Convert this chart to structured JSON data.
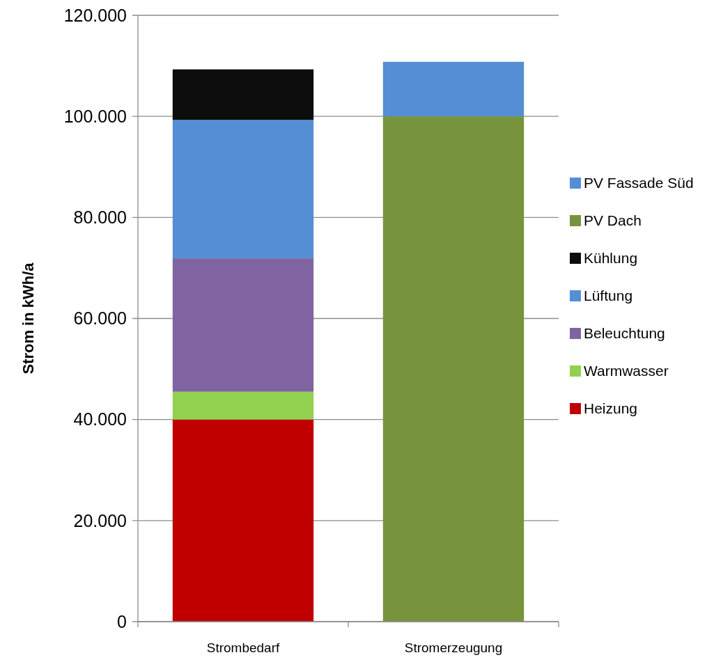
{
  "chart_data": {
    "type": "bar",
    "stacked": true,
    "ylabel": "Strom in kWh/a",
    "categories": [
      "Strombedarf",
      "Stromerzeugung"
    ],
    "series": [
      {
        "name": "Heizung",
        "color": "#c00000",
        "values": [
          40000,
          null
        ]
      },
      {
        "name": "Warmwasser",
        "color": "#92d050",
        "values": [
          5500,
          null
        ]
      },
      {
        "name": "Beleuchtung",
        "color": "#8064a2",
        "values": [
          26400,
          null
        ]
      },
      {
        "name": "Lüftung",
        "color": "#558ed5",
        "values": [
          27400,
          null
        ]
      },
      {
        "name": "Kühlung",
        "color": "#0d0d0d",
        "values": [
          10000,
          null
        ]
      },
      {
        "name": "PV Dach",
        "color": "#77933c",
        "values": [
          null,
          100000
        ]
      },
      {
        "name": "PV Fassade Süd",
        "color": "#558ed5",
        "values": [
          null,
          10800
        ]
      }
    ],
    "ylim": [
      0,
      120000
    ],
    "yticks": [
      0,
      {
        "value": 20000,
        "label": "20.000"
      },
      {
        "value": 40000,
        "label": "40.000"
      },
      {
        "value": 60000,
        "label": "60.000"
      },
      {
        "value": 80000,
        "label": "80.000"
      },
      {
        "value": 100000,
        "label": "100.000"
      },
      {
        "value": 120000,
        "label": "120.000"
      }
    ],
    "grid": "y",
    "legend": "right"
  }
}
